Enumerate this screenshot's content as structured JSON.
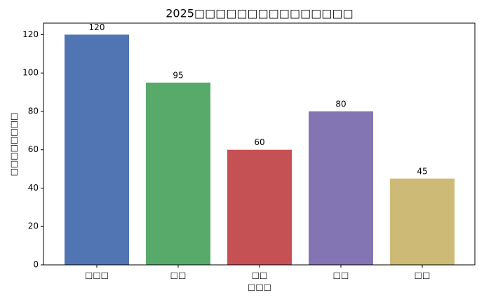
{
  "chart_data": {
    "type": "bar",
    "title": "2025□□□□□□□□□□□□□□□",
    "x_label": "□□□",
    "y_label": "□□□□□□□□",
    "categories": [
      "□□□",
      "□□",
      "□□",
      "□□",
      "□□"
    ],
    "series": [
      {
        "name": "□□",
        "colors": [
          "#4c72b0",
          "#55a868",
          "#c44e52",
          "#8172b2",
          "#ccb974"
        ],
        "values": [
          120,
          95,
          60,
          80,
          45
        ]
      }
    ],
    "ylim": [
      0,
      126
    ],
    "yticks": [
      0,
      20,
      40,
      60,
      80,
      100,
      120
    ]
  }
}
